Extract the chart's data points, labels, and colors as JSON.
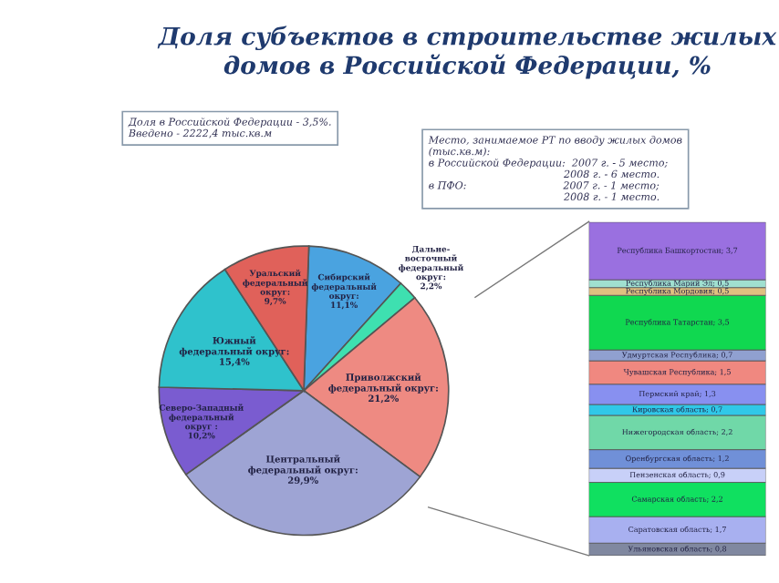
{
  "chart_data": [
    {
      "type": "pie",
      "title": "Доля субъектов в строительстве жилых домов в Российской Федерации, %",
      "categories": [
        "Сибирский федеральный округ",
        "Дальне-восточный федеральный округ",
        "Приволжский федеральный округ",
        "Центральный федеральный округ",
        "Северо-Западный федеральный округ",
        "Южный федеральный округ",
        "Уральский федеральный округ"
      ],
      "values": [
        11.1,
        2.2,
        21.2,
        29.9,
        10.2,
        15.4,
        9.7
      ],
      "value_labels": [
        ":\n11,1%",
        ":\n2,2%",
        ":\n21,2%",
        ":\n29,9%",
        " :\n10,2%",
        ":\n15,4%",
        ":\n9,7%"
      ],
      "colors": [
        "#4aa3e0",
        "#3ee0b0",
        "#ee8a82",
        "#9ea4d4",
        "#7a5cd0",
        "#2fc2cc",
        "#e0615a"
      ],
      "annotations": [
        "Доля в Российской Федерации - 3,5%.\nВведено - 2222,4 тыс.кв.м",
        "Место, занимаемое РТ по вводу жилых домов\n(тыс.кв.м):\nв Российской Федерации:  2007 г. - 5 место;\n                                          2008 г. - 6 место.\nв ПФО:                              2007 г. - 1 место;\n                                          2008 г. - 1 место."
      ]
    },
    {
      "type": "bar",
      "stacked": true,
      "categories": [
        null
      ],
      "series": [
        {
          "color": "#8088a0",
          "values": [
            0.8
          ],
          "value_labels": [
            "Ульяновская область; 0,8"
          ]
        },
        {
          "color": "#a8b0f0",
          "values": [
            1.7
          ],
          "value_labels": [
            "Саратовская область; 1,7"
          ]
        },
        {
          "color": "#10e060",
          "values": [
            2.2
          ],
          "value_labels": [
            "Самарская область; 2,2"
          ]
        },
        {
          "color": "#c8d0f8",
          "values": [
            0.9
          ],
          "value_labels": [
            "Пензенская область; 0,9"
          ]
        },
        {
          "color": "#7090d8",
          "values": [
            1.2
          ],
          "value_labels": [
            "Оренбургская область; 1,2"
          ]
        },
        {
          "color": "#70d8a8",
          "values": [
            2.2
          ],
          "value_labels": [
            "Нижегородская область; 2,2"
          ]
        },
        {
          "color": "#30c8e8",
          "values": [
            0.7
          ],
          "value_labels": [
            "Кировская область; 0,7"
          ]
        },
        {
          "color": "#8890f0",
          "values": [
            1.3
          ],
          "value_labels": [
            "Пермский край; 1,3"
          ]
        },
        {
          "color": "#f08880",
          "values": [
            1.5
          ],
          "value_labels": [
            "Чувашская Республика; 1,5"
          ]
        },
        {
          "color": "#90a0d0",
          "values": [
            0.7
          ],
          "value_labels": [
            "Удмуртская Республика; 0,7"
          ]
        },
        {
          "color": "#10d850",
          "values": [
            3.5
          ],
          "value_labels": [
            "Республика Татарстан; 3,5"
          ]
        },
        {
          "color": "#e0c080",
          "values": [
            0.5
          ],
          "value_labels": [
            "Республика Мордовия; 0,5"
          ]
        },
        {
          "color": "#a0e0d0",
          "values": [
            0.5
          ],
          "value_labels": [
            "Республика Марий Эл; 0,5"
          ]
        },
        {
          "color": "#9a70e0",
          "values": [
            3.7
          ],
          "value_labels": [
            "Республика Башкортостан; 3,7"
          ]
        }
      ]
    }
  ]
}
